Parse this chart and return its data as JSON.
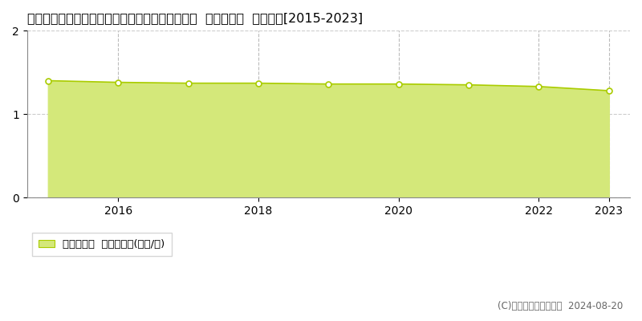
{
  "title": "福島県岩瀬郡天栄村大字田良尾字湯ノ後１９番１  基準地価格  地価推移[2015-2023]",
  "years": [
    2015,
    2016,
    2017,
    2018,
    2019,
    2020,
    2021,
    2022,
    2023
  ],
  "values": [
    1.4,
    1.38,
    1.37,
    1.37,
    1.36,
    1.36,
    1.35,
    1.33,
    1.28
  ],
  "line_color": "#aacc00",
  "fill_color": "#d4e87a",
  "marker_color": "#ffffff",
  "marker_edge_color": "#aacc00",
  "grid_color_h": "#cccccc",
  "grid_color_v": "#bbbbbb",
  "ylim": [
    0,
    2
  ],
  "yticks": [
    0,
    1,
    2
  ],
  "xticks": [
    2016,
    2018,
    2020,
    2022,
    2023
  ],
  "legend_label": "基準地価格  平均坪単価(万円/坪)",
  "copyright_text": "(C)土地価格ドットコム  2024-08-20",
  "bg_color": "#ffffff",
  "title_fontsize": 11.5,
  "axis_fontsize": 10,
  "legend_fontsize": 9.5,
  "copyright_fontsize": 8.5
}
